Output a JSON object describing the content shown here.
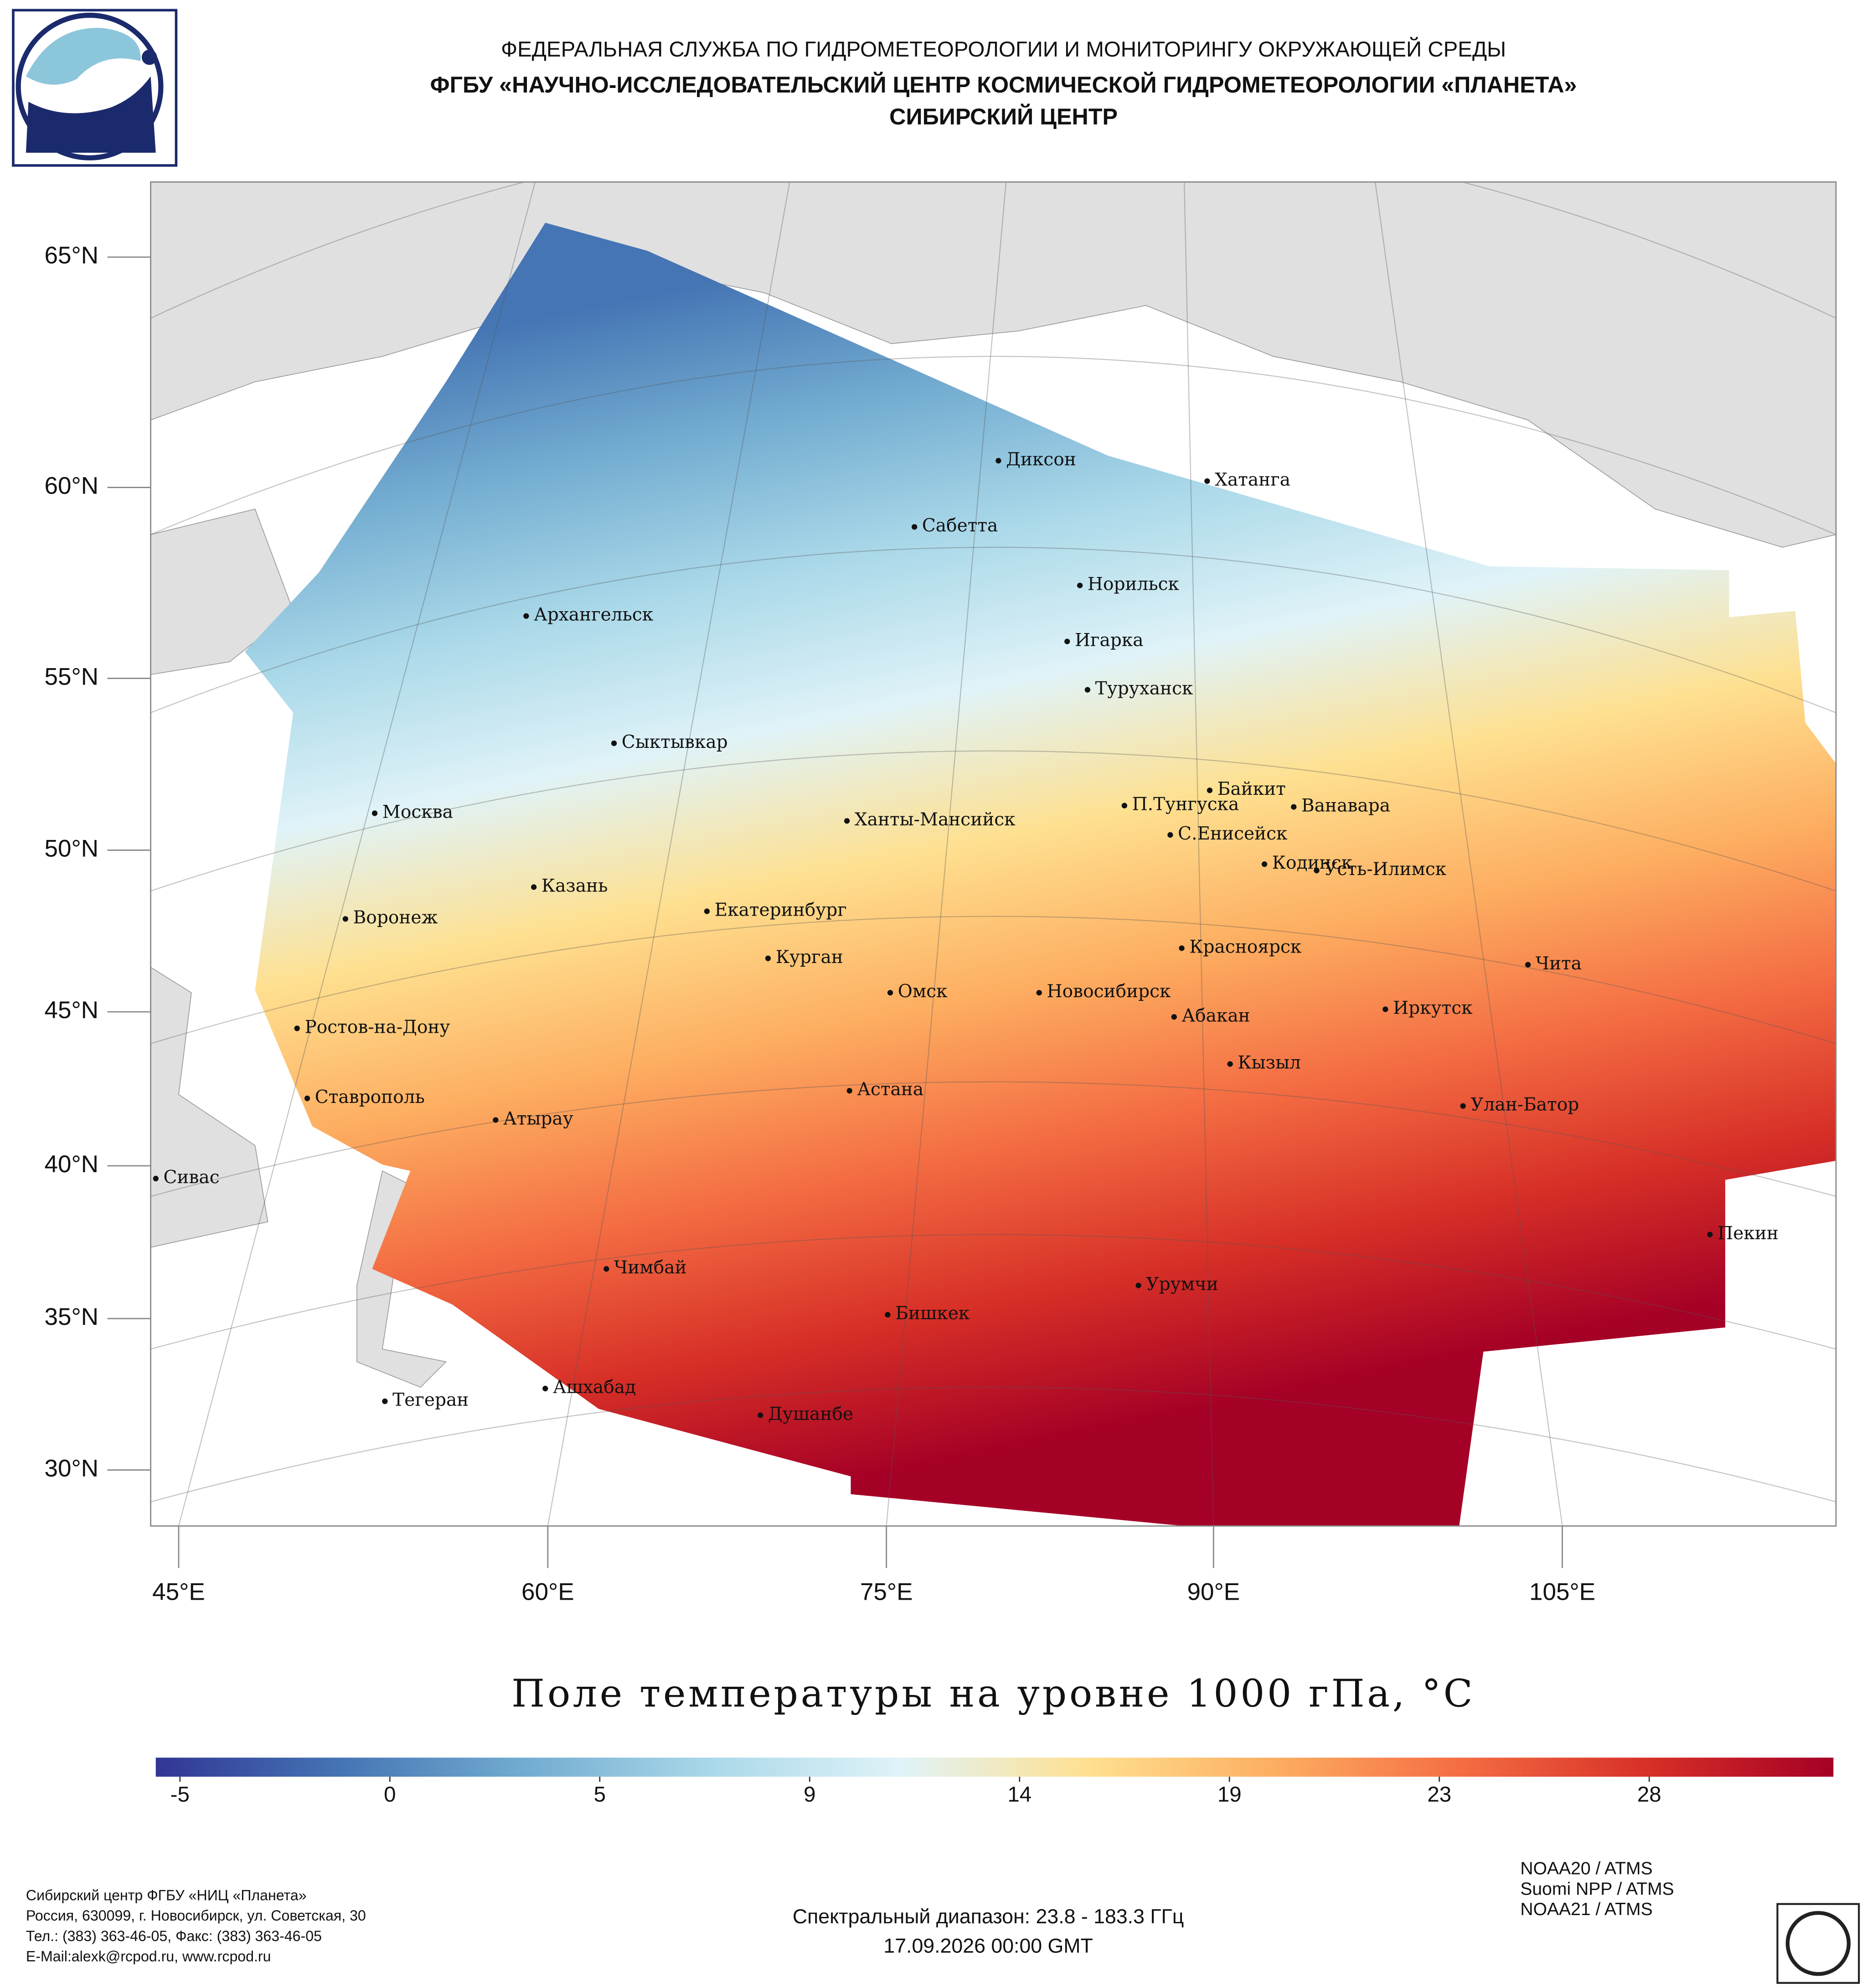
{
  "header": {
    "agency": "ФЕДЕРАЛЬНАЯ СЛУЖБА ПО ГИДРОМЕТЕОРОЛОГИИ И МОНИТОРИНГУ ОКРУЖАЮЩЕЙ СРЕДЫ",
    "org": "ФГБУ «НАУЧНО-ИССЛЕДОВАТЕЛЬСКИЙ ЦЕНТР КОСМИЧЕСКОЙ ГИДРОМЕТЕОРОЛОГИИ «ПЛАНЕТА»",
    "center": "СИБИРСКИЙ ЦЕНТР"
  },
  "map": {
    "lat_ticks": [
      {
        "value": 65,
        "label": "65°N"
      },
      {
        "value": 60,
        "label": "60°N"
      },
      {
        "value": 55,
        "label": "55°N"
      },
      {
        "value": 50,
        "label": "50°N"
      },
      {
        "value": 45,
        "label": "45°N"
      },
      {
        "value": 40,
        "label": "40°N"
      },
      {
        "value": 35,
        "label": "35°N"
      },
      {
        "value": 30,
        "label": "30°N"
      }
    ],
    "lon_ticks": [
      {
        "value": 45,
        "label": "45°E"
      },
      {
        "value": 60,
        "label": "60°E"
      },
      {
        "value": 75,
        "label": "75°E"
      },
      {
        "value": 90,
        "label": "90°E"
      },
      {
        "value": 105,
        "label": "105°E"
      }
    ],
    "cities": [
      "Диксон",
      "Хатанга",
      "Сабетта",
      "Норильск",
      "Архангельск",
      "Игарка",
      "Туруханск",
      "Сыктывкар",
      "Байкит",
      "П.Тунгуска",
      "Ванавара",
      "Москва",
      "Ханты-Мансийск",
      "С.Енисейск",
      "Кодинск",
      "Усть-Илимск",
      "Казань",
      "Екатеринбург",
      "Воронеж",
      "Красноярск",
      "Курган",
      "Чита",
      "Омск",
      "Новосибирск",
      "Ростов-на-Дону",
      "Иркутск",
      "Абакан",
      "Кызыл",
      "Ставрополь",
      "Астана",
      "Улан-Батор",
      "Атырау",
      "Сивас",
      "Пекин",
      "Чимбай",
      "Урумчи",
      "Бишкек",
      "Ашхабад",
      "Тегеран",
      "Душанбе"
    ]
  },
  "title": "Поле температуры на уровне 1000 гПа, °C",
  "colorbar": {
    "ticks": [
      -5,
      0,
      5,
      9,
      14,
      19,
      23,
      28
    ],
    "colors": [
      "#313695",
      "#4575b4",
      "#74add1",
      "#abd9e9",
      "#e0f3f8",
      "#fee090",
      "#fdae61",
      "#f46d43",
      "#d73027",
      "#a50026"
    ]
  },
  "footer": {
    "address": [
      "Сибирский центр ФГБУ «НИЦ «Планета»",
      "Россия, 630099, г. Новосибирск, ул. Советская, 30",
      "Тел.: (383) 363-46-05, Факс: (383) 363-46-05",
      "E-Mail:alexk@rcpod.ru, www.rcpod.ru"
    ],
    "satellites": [
      "NOAA20 / ATMS",
      "Suomi NPP / ATMS",
      "NOAA21 / ATMS"
    ],
    "spectral": "Спектральный диапазон: 23.8 - 183.3 ГГц",
    "date": "17.09.2026 00:00 GMT"
  }
}
